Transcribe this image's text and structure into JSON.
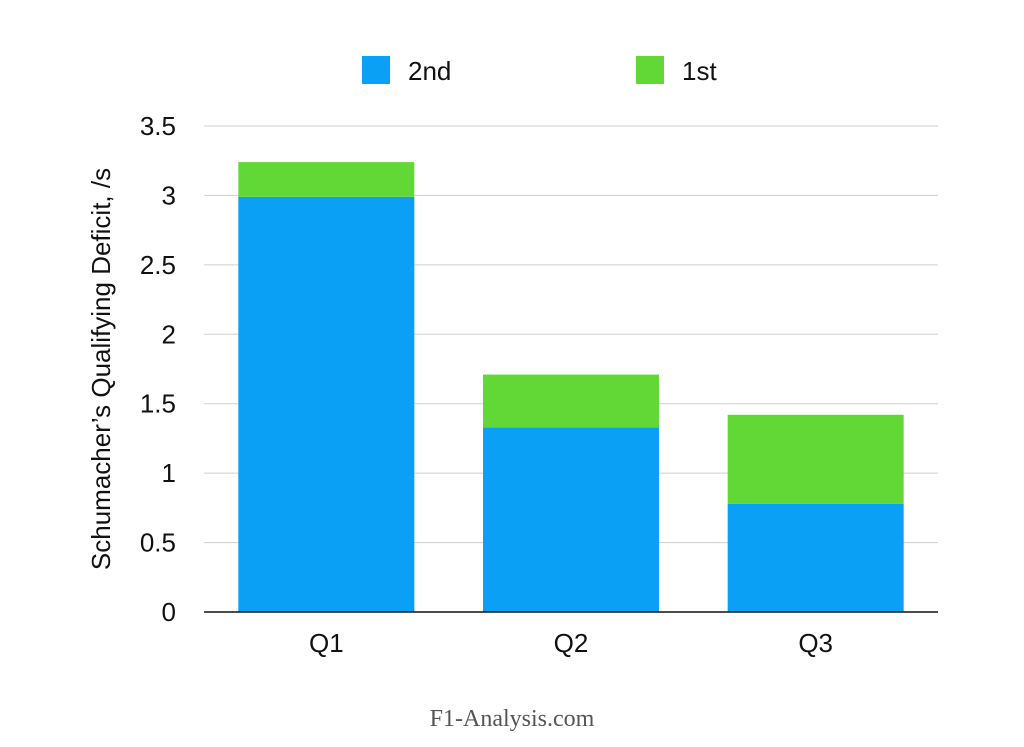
{
  "chart_data": {
    "type": "bar",
    "stacked": true,
    "categories": [
      "Q1",
      "Q2",
      "Q3"
    ],
    "series": [
      {
        "name": "2nd",
        "color": "#0aa0f5",
        "values": [
          2.99,
          1.33,
          0.78
        ]
      },
      {
        "name": "1st",
        "color": "#61d836",
        "values": [
          0.25,
          0.38,
          0.64
        ]
      }
    ],
    "ylabel": "Schumacher’s Qualifying Deficit, /s",
    "xlabel": "",
    "ylim": [
      0,
      3.5
    ],
    "yticks": [
      0,
      0.5,
      1,
      1.5,
      2,
      2.5,
      3,
      3.5
    ],
    "ytick_labels": [
      "0",
      "0.5",
      "1",
      "1.5",
      "2",
      "2.5",
      "3",
      "3.5"
    ],
    "grid": true,
    "legend_position": "top-center"
  },
  "watermark": "F1-Analysis.com"
}
